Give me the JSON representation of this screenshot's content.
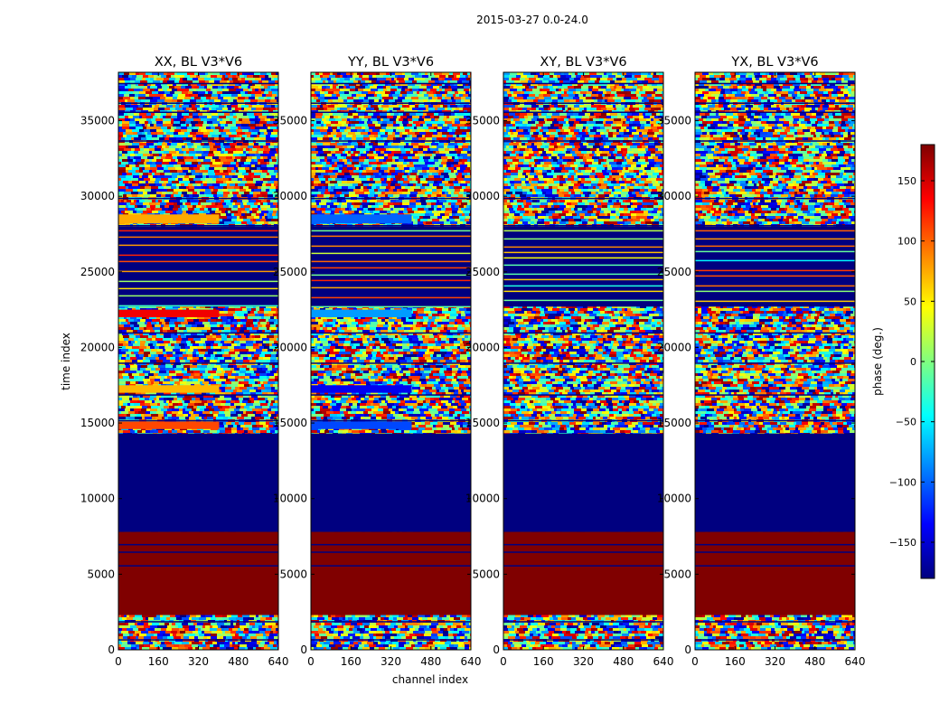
{
  "figure": {
    "suptitle": "2015-03-27 0.0-24.0",
    "xlabel": "channel index",
    "ylabel": "time index"
  },
  "chart_data": {
    "type": "heatmap",
    "colormap": "jet",
    "x_ticks": [
      "0",
      "160",
      "320",
      "480",
      "640"
    ],
    "y_ticks": [
      "0",
      "5000",
      "10000",
      "15000",
      "20000",
      "25000",
      "30000",
      "35000"
    ],
    "xlim": [
      0,
      640
    ],
    "ylim": [
      0,
      38200
    ],
    "panels": [
      {
        "title": "XX, BL V3*V6",
        "key": "XX"
      },
      {
        "title": "YY, BL V3*V6",
        "key": "YY"
      },
      {
        "title": "XY, BL V3*V6",
        "key": "XY"
      },
      {
        "title": "YX, BL V3*V6",
        "key": "YX"
      }
    ],
    "colorbar": {
      "label": "phase (deg.)",
      "range": [
        -180,
        180
      ],
      "ticks": [
        "150",
        "100",
        "50",
        "0",
        "−50",
        "−100",
        "−150"
      ],
      "tick_values": [
        150,
        100,
        50,
        0,
        -50,
        -100,
        -150
      ]
    },
    "bands": [
      {
        "y0": 0,
        "y1": 2300,
        "pattern": "noise"
      },
      {
        "y0": 2300,
        "y1": 7800,
        "pattern": "solid",
        "phase": 180
      },
      {
        "y0": 7800,
        "y1": 14300,
        "pattern": "solid",
        "phase": -180
      },
      {
        "y0": 14300,
        "y1": 28200,
        "pattern": "noise"
      },
      {
        "y0": 28200,
        "y1": 35800,
        "pattern": "noise"
      },
      {
        "y0": 35800,
        "y1": 38200,
        "pattern": "noise"
      }
    ],
    "stripe_region": {
      "y0": 22700,
      "y1": 28000,
      "phase": -180
    },
    "special_rows": {
      "XX": [
        {
          "y0": 14600,
          "y1": 15100,
          "phase": 110
        },
        {
          "y0": 17000,
          "y1": 17500,
          "phase": 70
        },
        {
          "y0": 22000,
          "y1": 22500,
          "phase": 140
        },
        {
          "y0": 28200,
          "y1": 28800,
          "phase": 75
        }
      ],
      "YY": [
        {
          "y0": 14600,
          "y1": 15100,
          "phase": -110
        },
        {
          "y0": 17000,
          "y1": 17500,
          "phase": -140
        },
        {
          "y0": 22000,
          "y1": 22500,
          "phase": -80
        },
        {
          "y0": 28200,
          "y1": 28800,
          "phase": -100
        }
      ],
      "XY": [],
      "YX": []
    }
  }
}
